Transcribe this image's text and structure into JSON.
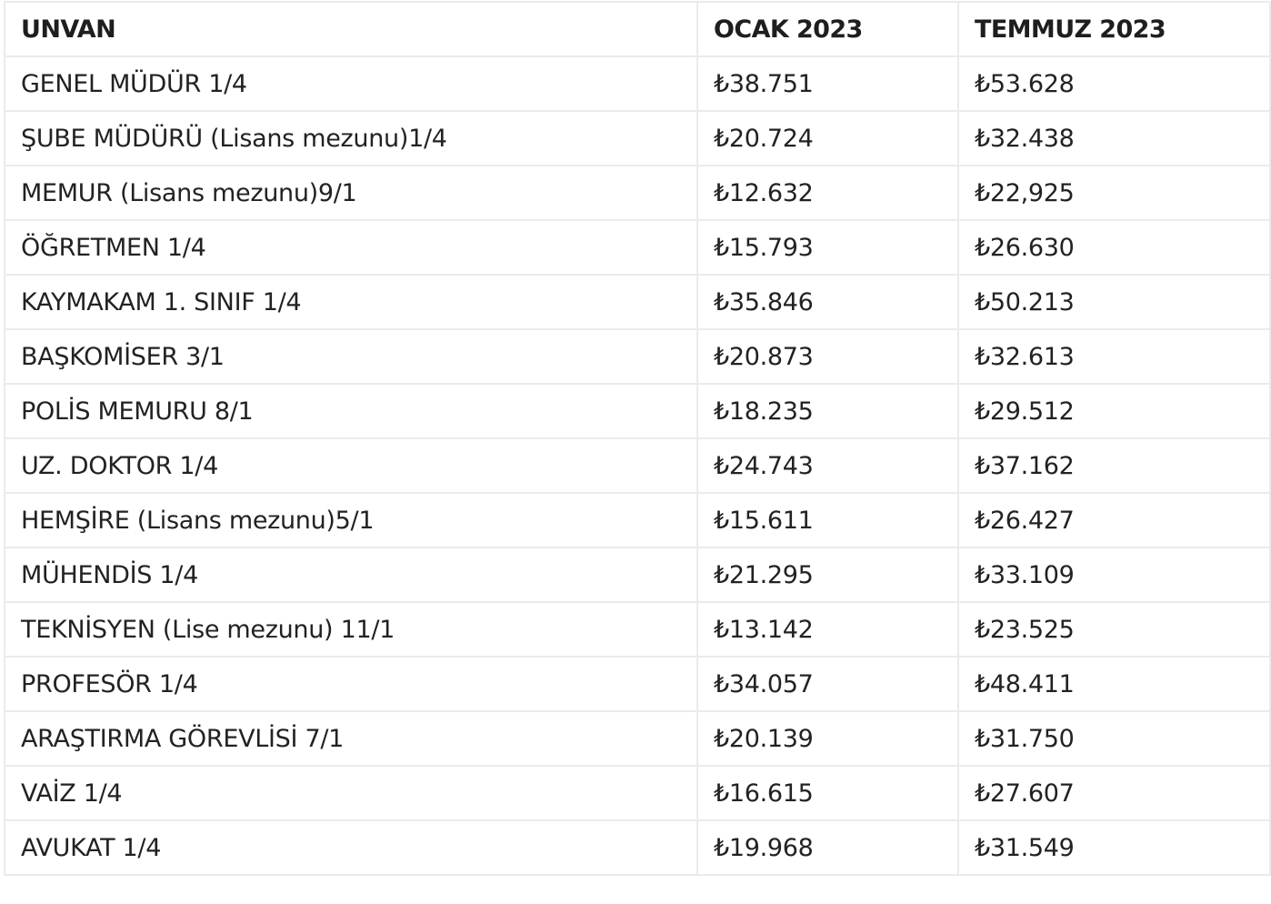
{
  "table": {
    "headers": [
      "UNVAN",
      "OCAK 2023",
      "TEMMUZ 2023"
    ],
    "rows": [
      {
        "title": "GENEL MÜDÜR 1/4",
        "jan_2023": "₺38.751",
        "jul_2023": "₺53.628"
      },
      {
        "title": "ŞUBE MÜDÜRÜ (Lisans mezunu)1/4",
        "jan_2023": "₺20.724",
        "jul_2023": "₺32.438"
      },
      {
        "title": "MEMUR (Lisans mezunu)9/1",
        "jan_2023": "₺12.632",
        "jul_2023": "₺22,925"
      },
      {
        "title": "ÖĞRETMEN 1/4",
        "jan_2023": "₺15.793",
        "jul_2023": "₺26.630"
      },
      {
        "title": "KAYMAKAM 1. SINIF 1/4",
        "jan_2023": "₺35.846",
        "jul_2023": "₺50.213"
      },
      {
        "title": "BAŞKOMİSER 3/1",
        "jan_2023": "₺20.873",
        "jul_2023": "₺32.613"
      },
      {
        "title": "POLİS MEMURU 8/1",
        "jan_2023": "₺18.235",
        "jul_2023": "₺29.512"
      },
      {
        "title": "UZ. DOKTOR 1/4",
        "jan_2023": "₺24.743",
        "jul_2023": "₺37.162"
      },
      {
        "title": "HEMŞİRE (Lisans mezunu)5/1",
        "jan_2023": "₺15.611",
        "jul_2023": "₺26.427"
      },
      {
        "title": "MÜHENDİS 1/4",
        "jan_2023": "₺21.295",
        "jul_2023": "₺33.109"
      },
      {
        "title": "TEKNİSYEN (Lise mezunu) 11/1",
        "jan_2023": "₺13.142",
        "jul_2023": "₺23.525"
      },
      {
        "title": "PROFESÖR 1/4",
        "jan_2023": "₺34.057",
        "jul_2023": "₺48.411"
      },
      {
        "title": "ARAŞTIRMA GÖREVLİSİ 7/1",
        "jan_2023": "₺20.139",
        "jul_2023": "₺31.750"
      },
      {
        "title": "VAİZ 1/4",
        "jan_2023": "₺16.615",
        "jul_2023": "₺27.607"
      },
      {
        "title": "AVUKAT 1/4",
        "jan_2023": "₺19.968",
        "jul_2023": "₺31.549"
      }
    ]
  },
  "colors": {
    "border": "#ebebeb",
    "text": "#222222",
    "background": "#ffffff"
  }
}
